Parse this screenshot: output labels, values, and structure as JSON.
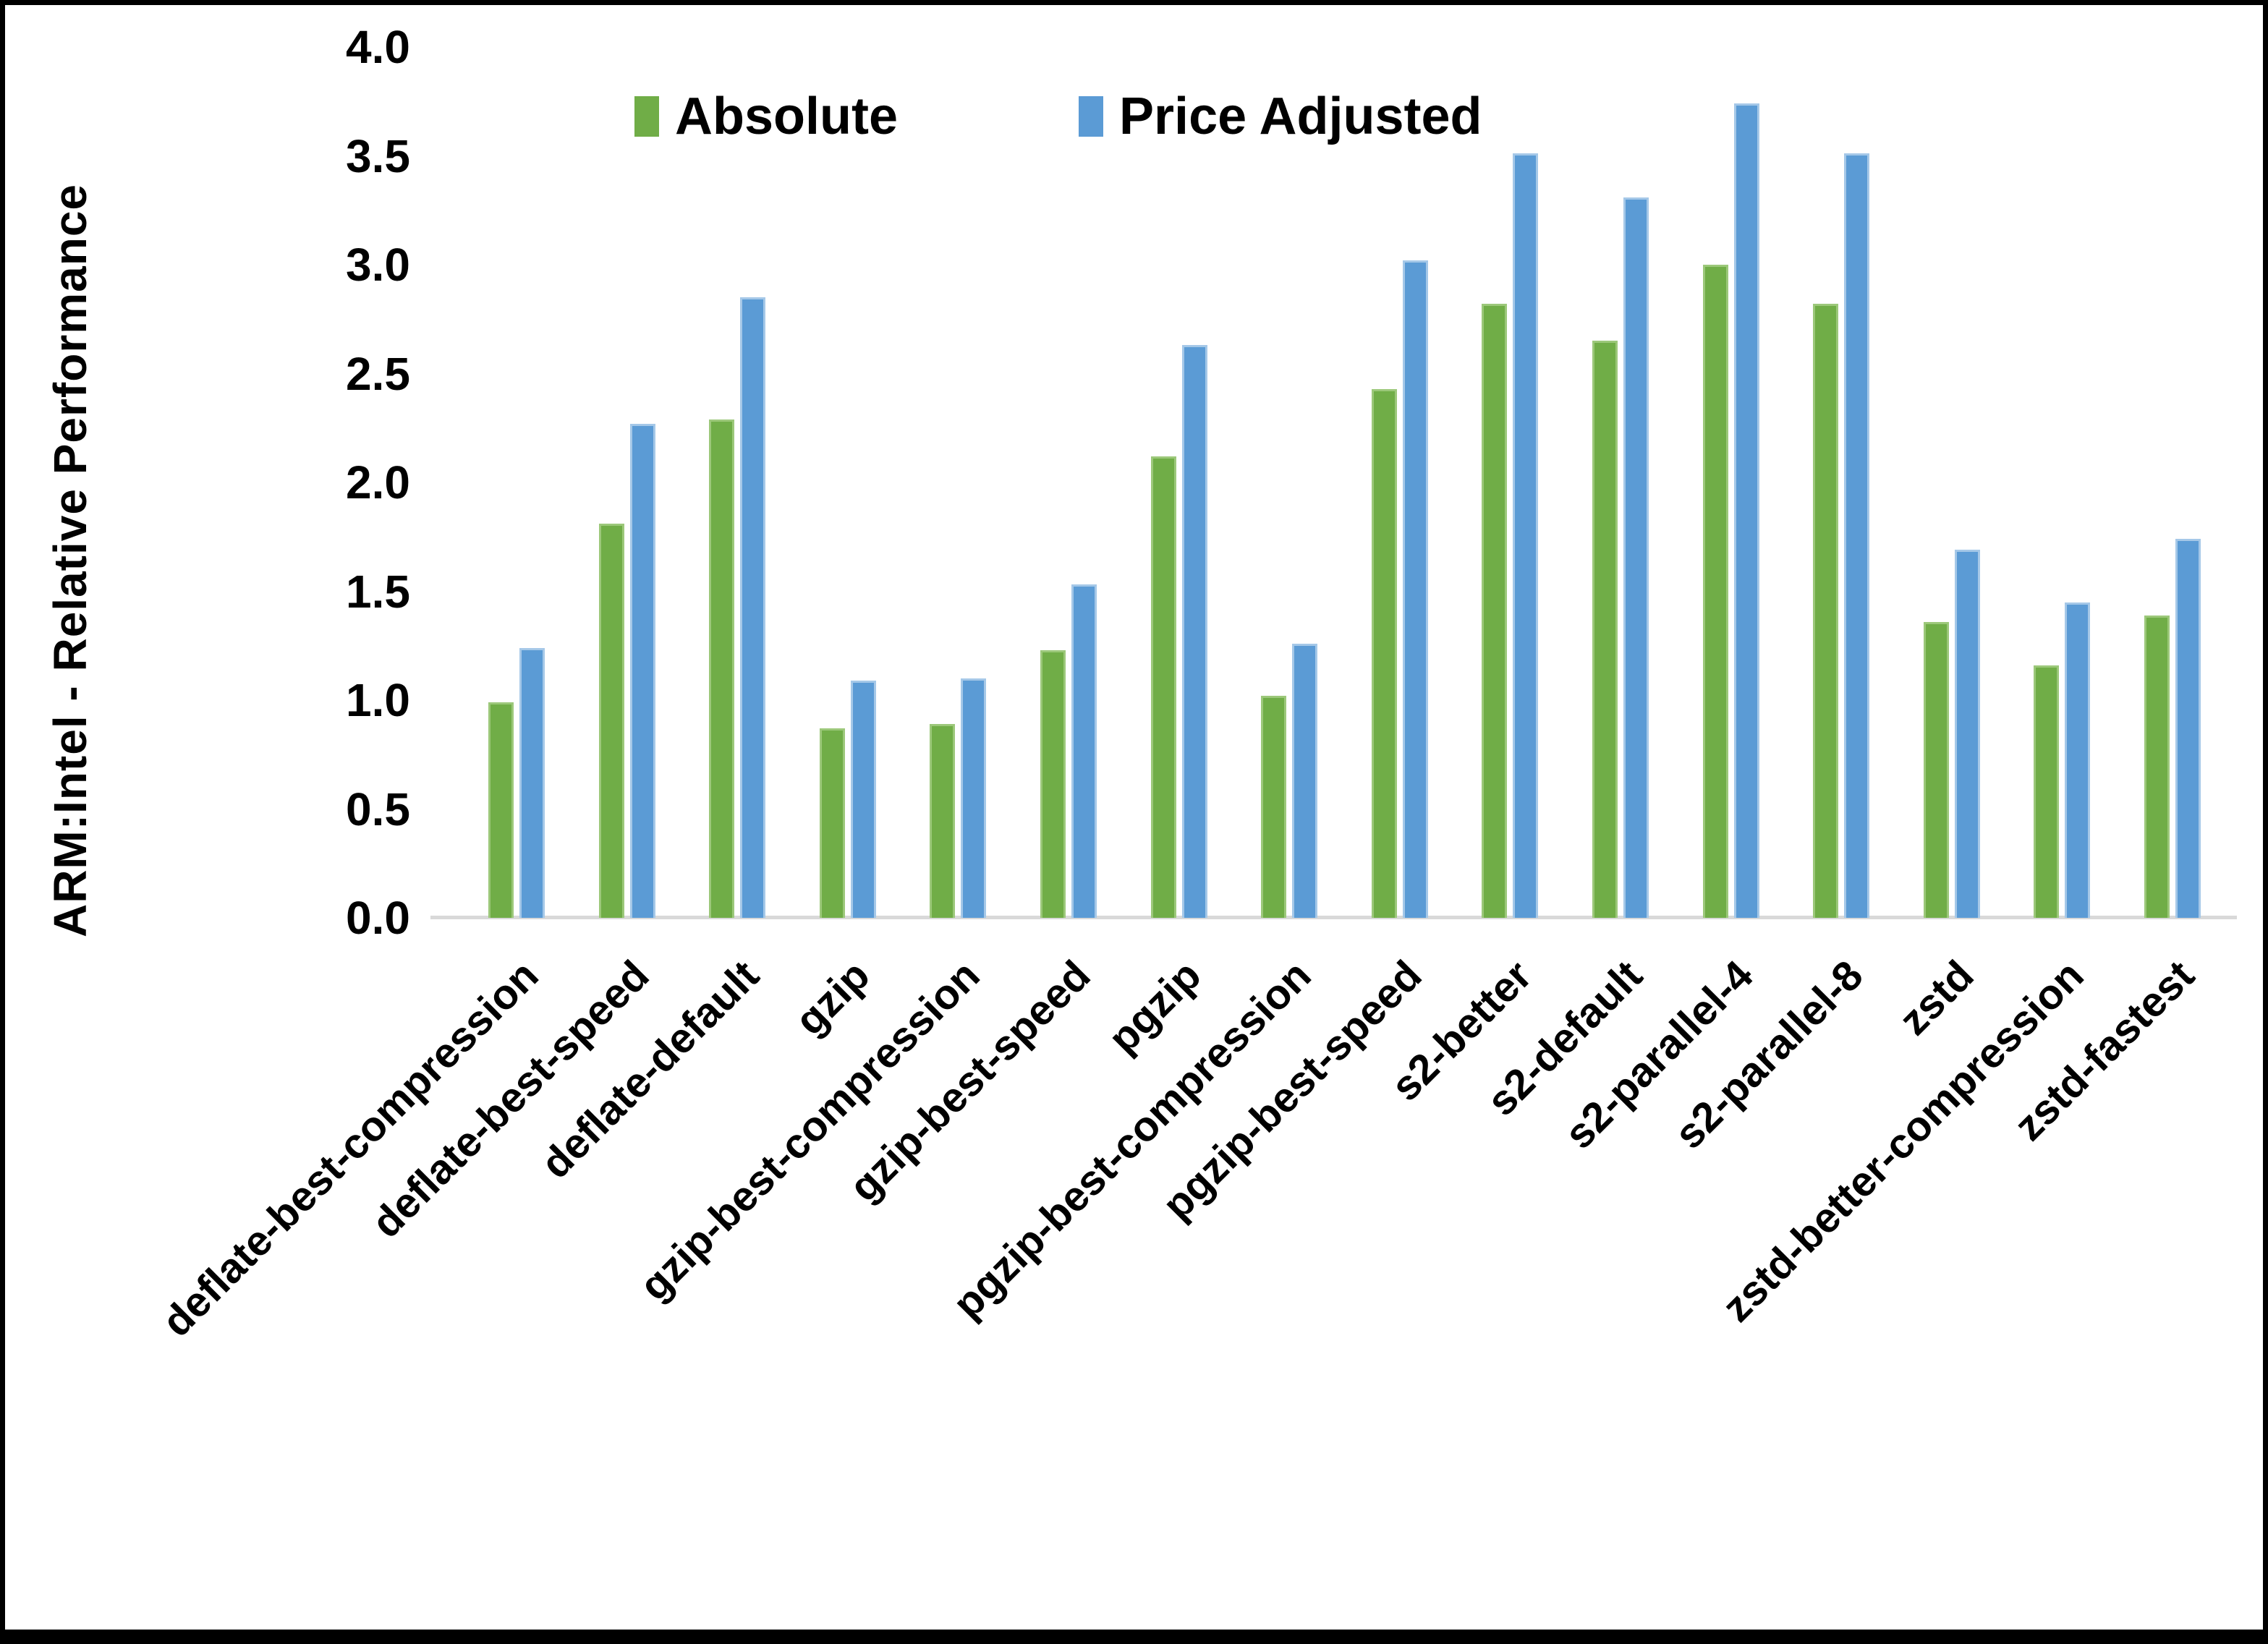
{
  "chart_data": {
    "type": "bar",
    "title": "",
    "ylabel": "ARM:Intel - Relative Performance",
    "xlabel": "",
    "ylim": [
      0.0,
      4.0
    ],
    "ytick_step": 0.5,
    "yticks": [
      4.0,
      3.5,
      3.0,
      2.5,
      2.0,
      1.5,
      1.0,
      0.5,
      0.0
    ],
    "grid": false,
    "legend_position": "top-center",
    "categories": [
      "deflate-best-compression",
      "deflate-best-speed",
      "deflate-default",
      "gzip",
      "gzip-best-compression",
      "gzip-best-speed",
      "pgzip",
      "pgzip-best-compression",
      "pgzip-best-speed",
      "s2-better",
      "s2-default",
      "s2-parallel-4",
      "s2-parallel-8",
      "zstd",
      "zstd-better-compression",
      "zstd-fastest"
    ],
    "series": [
      {
        "name": "Absolute",
        "color": "#70AD47",
        "edge_color": "#9CC87A",
        "values": [
          0.99,
          1.81,
          2.29,
          0.87,
          0.89,
          1.23,
          2.12,
          1.02,
          2.43,
          2.82,
          2.65,
          3.0,
          2.82,
          1.36,
          1.16,
          1.39
        ]
      },
      {
        "name": "Price Adjusted",
        "color": "#5B9BD5",
        "edge_color": "#A5C8E8",
        "values": [
          1.24,
          2.27,
          2.85,
          1.09,
          1.1,
          1.53,
          2.63,
          1.26,
          3.02,
          3.51,
          3.31,
          3.74,
          3.51,
          1.69,
          1.45,
          1.74
        ]
      }
    ],
    "axis_line_color": "#D9D9D9",
    "text_color": "#000000",
    "background_color": "#FFFFFF",
    "border_color": "#000000"
  }
}
